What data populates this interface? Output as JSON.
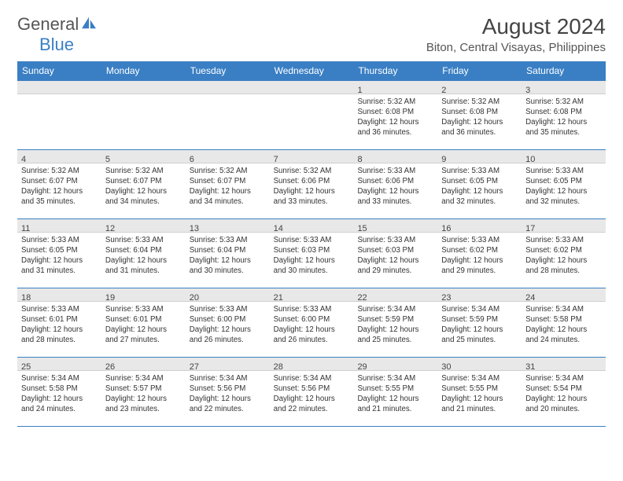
{
  "logo": {
    "word1": "General",
    "word2": "Blue"
  },
  "title": "August 2024",
  "location": "Biton, Central Visayas, Philippines",
  "colors": {
    "header_bg": "#3a7fc4",
    "header_text": "#ffffff",
    "daynum_bg": "#e8e8e8",
    "row_border": "#3a7fc4",
    "body_text": "#333333",
    "page_bg": "#ffffff"
  },
  "weekdays": [
    "Sunday",
    "Monday",
    "Tuesday",
    "Wednesday",
    "Thursday",
    "Friday",
    "Saturday"
  ],
  "weeks": [
    [
      {
        "n": "",
        "sr": "",
        "ss": "",
        "dl": ""
      },
      {
        "n": "",
        "sr": "",
        "ss": "",
        "dl": ""
      },
      {
        "n": "",
        "sr": "",
        "ss": "",
        "dl": ""
      },
      {
        "n": "",
        "sr": "",
        "ss": "",
        "dl": ""
      },
      {
        "n": "1",
        "sr": "Sunrise: 5:32 AM",
        "ss": "Sunset: 6:08 PM",
        "dl": "Daylight: 12 hours and 36 minutes."
      },
      {
        "n": "2",
        "sr": "Sunrise: 5:32 AM",
        "ss": "Sunset: 6:08 PM",
        "dl": "Daylight: 12 hours and 36 minutes."
      },
      {
        "n": "3",
        "sr": "Sunrise: 5:32 AM",
        "ss": "Sunset: 6:08 PM",
        "dl": "Daylight: 12 hours and 35 minutes."
      }
    ],
    [
      {
        "n": "4",
        "sr": "Sunrise: 5:32 AM",
        "ss": "Sunset: 6:07 PM",
        "dl": "Daylight: 12 hours and 35 minutes."
      },
      {
        "n": "5",
        "sr": "Sunrise: 5:32 AM",
        "ss": "Sunset: 6:07 PM",
        "dl": "Daylight: 12 hours and 34 minutes."
      },
      {
        "n": "6",
        "sr": "Sunrise: 5:32 AM",
        "ss": "Sunset: 6:07 PM",
        "dl": "Daylight: 12 hours and 34 minutes."
      },
      {
        "n": "7",
        "sr": "Sunrise: 5:32 AM",
        "ss": "Sunset: 6:06 PM",
        "dl": "Daylight: 12 hours and 33 minutes."
      },
      {
        "n": "8",
        "sr": "Sunrise: 5:33 AM",
        "ss": "Sunset: 6:06 PM",
        "dl": "Daylight: 12 hours and 33 minutes."
      },
      {
        "n": "9",
        "sr": "Sunrise: 5:33 AM",
        "ss": "Sunset: 6:05 PM",
        "dl": "Daylight: 12 hours and 32 minutes."
      },
      {
        "n": "10",
        "sr": "Sunrise: 5:33 AM",
        "ss": "Sunset: 6:05 PM",
        "dl": "Daylight: 12 hours and 32 minutes."
      }
    ],
    [
      {
        "n": "11",
        "sr": "Sunrise: 5:33 AM",
        "ss": "Sunset: 6:05 PM",
        "dl": "Daylight: 12 hours and 31 minutes."
      },
      {
        "n": "12",
        "sr": "Sunrise: 5:33 AM",
        "ss": "Sunset: 6:04 PM",
        "dl": "Daylight: 12 hours and 31 minutes."
      },
      {
        "n": "13",
        "sr": "Sunrise: 5:33 AM",
        "ss": "Sunset: 6:04 PM",
        "dl": "Daylight: 12 hours and 30 minutes."
      },
      {
        "n": "14",
        "sr": "Sunrise: 5:33 AM",
        "ss": "Sunset: 6:03 PM",
        "dl": "Daylight: 12 hours and 30 minutes."
      },
      {
        "n": "15",
        "sr": "Sunrise: 5:33 AM",
        "ss": "Sunset: 6:03 PM",
        "dl": "Daylight: 12 hours and 29 minutes."
      },
      {
        "n": "16",
        "sr": "Sunrise: 5:33 AM",
        "ss": "Sunset: 6:02 PM",
        "dl": "Daylight: 12 hours and 29 minutes."
      },
      {
        "n": "17",
        "sr": "Sunrise: 5:33 AM",
        "ss": "Sunset: 6:02 PM",
        "dl": "Daylight: 12 hours and 28 minutes."
      }
    ],
    [
      {
        "n": "18",
        "sr": "Sunrise: 5:33 AM",
        "ss": "Sunset: 6:01 PM",
        "dl": "Daylight: 12 hours and 28 minutes."
      },
      {
        "n": "19",
        "sr": "Sunrise: 5:33 AM",
        "ss": "Sunset: 6:01 PM",
        "dl": "Daylight: 12 hours and 27 minutes."
      },
      {
        "n": "20",
        "sr": "Sunrise: 5:33 AM",
        "ss": "Sunset: 6:00 PM",
        "dl": "Daylight: 12 hours and 26 minutes."
      },
      {
        "n": "21",
        "sr": "Sunrise: 5:33 AM",
        "ss": "Sunset: 6:00 PM",
        "dl": "Daylight: 12 hours and 26 minutes."
      },
      {
        "n": "22",
        "sr": "Sunrise: 5:34 AM",
        "ss": "Sunset: 5:59 PM",
        "dl": "Daylight: 12 hours and 25 minutes."
      },
      {
        "n": "23",
        "sr": "Sunrise: 5:34 AM",
        "ss": "Sunset: 5:59 PM",
        "dl": "Daylight: 12 hours and 25 minutes."
      },
      {
        "n": "24",
        "sr": "Sunrise: 5:34 AM",
        "ss": "Sunset: 5:58 PM",
        "dl": "Daylight: 12 hours and 24 minutes."
      }
    ],
    [
      {
        "n": "25",
        "sr": "Sunrise: 5:34 AM",
        "ss": "Sunset: 5:58 PM",
        "dl": "Daylight: 12 hours and 24 minutes."
      },
      {
        "n": "26",
        "sr": "Sunrise: 5:34 AM",
        "ss": "Sunset: 5:57 PM",
        "dl": "Daylight: 12 hours and 23 minutes."
      },
      {
        "n": "27",
        "sr": "Sunrise: 5:34 AM",
        "ss": "Sunset: 5:56 PM",
        "dl": "Daylight: 12 hours and 22 minutes."
      },
      {
        "n": "28",
        "sr": "Sunrise: 5:34 AM",
        "ss": "Sunset: 5:56 PM",
        "dl": "Daylight: 12 hours and 22 minutes."
      },
      {
        "n": "29",
        "sr": "Sunrise: 5:34 AM",
        "ss": "Sunset: 5:55 PM",
        "dl": "Daylight: 12 hours and 21 minutes."
      },
      {
        "n": "30",
        "sr": "Sunrise: 5:34 AM",
        "ss": "Sunset: 5:55 PM",
        "dl": "Daylight: 12 hours and 21 minutes."
      },
      {
        "n": "31",
        "sr": "Sunrise: 5:34 AM",
        "ss": "Sunset: 5:54 PM",
        "dl": "Daylight: 12 hours and 20 minutes."
      }
    ]
  ]
}
